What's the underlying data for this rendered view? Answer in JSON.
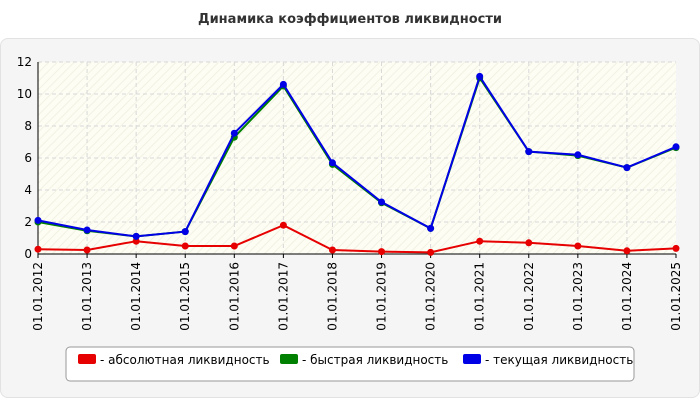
{
  "chart_data": {
    "type": "line",
    "title": "Динамика коэффициентов ликвидности",
    "xlabel": "",
    "ylabel": "",
    "x": [
      "01.01.2012",
      "01.01.2013",
      "01.01.2014",
      "01.01.2015",
      "01.01.2016",
      "01.01.2017",
      "01.01.2018",
      "01.01.2019",
      "01.01.2020",
      "01.01.2021",
      "01.01.2022",
      "01.01.2023",
      "01.01.2024",
      "01.01.2025"
    ],
    "ylim": [
      0,
      12
    ],
    "yticks": [
      0,
      2,
      4,
      6,
      8,
      10,
      12
    ],
    "grid": true,
    "legend_position": "bottom",
    "series": [
      {
        "name": "- абсолютная ликвидность",
        "color": "#e60000",
        "values": [
          0.3,
          0.25,
          0.8,
          0.5,
          0.5,
          1.8,
          0.25,
          0.15,
          0.1,
          0.8,
          0.7,
          0.5,
          0.2,
          0.35
        ]
      },
      {
        "name": "- быстрая ликвидность",
        "color": "#008000",
        "values": [
          2.0,
          1.45,
          1.1,
          1.4,
          7.3,
          10.5,
          5.6,
          3.2,
          1.6,
          11.0,
          6.4,
          6.15,
          5.4,
          6.65
        ]
      },
      {
        "name": "- текущая ликвидность",
        "color": "#0000e6",
        "values": [
          2.1,
          1.5,
          1.1,
          1.4,
          7.55,
          10.6,
          5.7,
          3.25,
          1.6,
          11.1,
          6.4,
          6.2,
          5.4,
          6.7
        ]
      }
    ]
  }
}
